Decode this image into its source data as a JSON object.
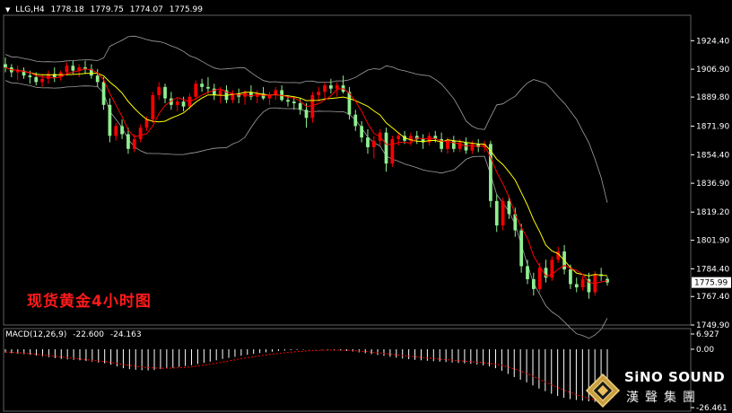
{
  "header": {
    "symbol": "LLG,H4",
    "open": "1778.18",
    "high": "1779.75",
    "low": "1774.07",
    "close": "1775.99"
  },
  "overlay_title": "现货黄金4小时图",
  "macd_header": {
    "label": "MACD(12,26,9)",
    "macd": "-22.600",
    "signal": "-24.163"
  },
  "logo": {
    "brand_en": "SiNO SOUND",
    "brand_cn": "漢聲集團"
  },
  "colors": {
    "background": "#000000",
    "bull_candle": "#90ee90",
    "bear_candle": "#ff0000",
    "ma_fast": "#ff0000",
    "ma_slow": "#ffff00",
    "bollinger": "#a0a0a0",
    "macd_hist": "#ffffff",
    "macd_signal": "#ff0000",
    "axis_text": "#ffffff"
  },
  "chart_data": [
    {
      "type": "candlestick",
      "title": "",
      "ylim": [
        1749.9,
        1940
      ],
      "y_ticks": [
        "1924.40",
        "1906.90",
        "1889.80",
        "1871.90",
        "1854.40",
        "1836.90",
        "1819.20",
        "1801.90",
        "1784.40",
        "1767.40",
        "1749.90"
      ],
      "current_price": "1775.99",
      "series": [
        {
          "type": "candlestick",
          "values": [
            [
              1910,
              1914,
              1905,
              1908
            ],
            [
              1908,
              1910,
              1902,
              1905
            ],
            [
              1905,
              1909,
              1900,
              1906
            ],
            [
              1906,
              1908,
              1901,
              1903
            ],
            [
              1903,
              1906,
              1898,
              1902
            ],
            [
              1902,
              1905,
              1897,
              1899
            ],
            [
              1899,
              1904,
              1896,
              1901
            ],
            [
              1901,
              1906,
              1898,
              1904
            ],
            [
              1904,
              1908,
              1899,
              1902
            ],
            [
              1902,
              1906,
              1900,
              1905
            ],
            [
              1905,
              1911,
              1903,
              1909
            ],
            [
              1909,
              1912,
              1904,
              1906
            ],
            [
              1906,
              1910,
              1902,
              1908
            ],
            [
              1908,
              1912,
              1904,
              1907
            ],
            [
              1907,
              1910,
              1901,
              1903
            ],
            [
              1903,
              1907,
              1896,
              1899
            ],
            [
              1899,
              1902,
              1882,
              1885
            ],
            [
              1885,
              1889,
              1862,
              1866
            ],
            [
              1866,
              1874,
              1863,
              1872
            ],
            [
              1872,
              1876,
              1864,
              1867
            ],
            [
              1867,
              1871,
              1855,
              1858
            ],
            [
              1858,
              1867,
              1856,
              1864
            ],
            [
              1864,
              1873,
              1862,
              1871
            ],
            [
              1871,
              1878,
              1869,
              1876
            ],
            [
              1876,
              1893,
              1874,
              1891
            ],
            [
              1891,
              1899,
              1888,
              1896
            ],
            [
              1896,
              1898,
              1886,
              1889
            ],
            [
              1889,
              1893,
              1882,
              1885
            ],
            [
              1885,
              1889,
              1881,
              1887
            ],
            [
              1887,
              1890,
              1881,
              1884
            ],
            [
              1884,
              1892,
              1882,
              1890
            ],
            [
              1890,
              1900,
              1888,
              1898
            ],
            [
              1898,
              1901,
              1893,
              1896
            ],
            [
              1896,
              1902,
              1892,
              1895
            ],
            [
              1895,
              1898,
              1888,
              1891
            ],
            [
              1891,
              1896,
              1886,
              1894
            ],
            [
              1894,
              1897,
              1886,
              1888
            ],
            [
              1888,
              1894,
              1886,
              1892
            ],
            [
              1892,
              1895,
              1886,
              1890
            ],
            [
              1890,
              1894,
              1885,
              1893
            ],
            [
              1893,
              1897,
              1888,
              1890
            ],
            [
              1890,
              1894,
              1886,
              1892
            ],
            [
              1892,
              1896,
              1888,
              1889
            ],
            [
              1889,
              1893,
              1885,
              1891
            ],
            [
              1891,
              1896,
              1888,
              1894
            ],
            [
              1894,
              1897,
              1887,
              1888
            ],
            [
              1888,
              1891,
              1884,
              1887
            ],
            [
              1887,
              1890,
              1882,
              1886
            ],
            [
              1886,
              1889,
              1879,
              1882
            ],
            [
              1882,
              1886,
              1871,
              1877
            ],
            [
              1877,
              1893,
              1874,
              1891
            ],
            [
              1891,
              1896,
              1887,
              1893
            ],
            [
              1893,
              1899,
              1889,
              1897
            ],
            [
              1897,
              1901,
              1892,
              1895
            ],
            [
              1895,
              1899,
              1890,
              1897
            ],
            [
              1897,
              1903,
              1892,
              1893
            ],
            [
              1893,
              1896,
              1876,
              1879
            ],
            [
              1879,
              1882,
              1869,
              1872
            ],
            [
              1872,
              1875,
              1862,
              1865
            ],
            [
              1865,
              1870,
              1855,
              1859
            ],
            [
              1859,
              1866,
              1852,
              1863
            ],
            [
              1863,
              1870,
              1860,
              1868
            ],
            [
              1868,
              1871,
              1844,
              1849
            ],
            [
              1849,
              1866,
              1847,
              1864
            ],
            [
              1864,
              1868,
              1860,
              1866
            ],
            [
              1866,
              1869,
              1861,
              1863
            ],
            [
              1863,
              1868,
              1860,
              1866
            ],
            [
              1866,
              1869,
              1861,
              1864
            ],
            [
              1864,
              1867,
              1858,
              1862
            ],
            [
              1862,
              1868,
              1860,
              1866
            ],
            [
              1866,
              1869,
              1862,
              1864
            ],
            [
              1864,
              1868,
              1856,
              1858
            ],
            [
              1858,
              1865,
              1855,
              1863
            ],
            [
              1863,
              1866,
              1856,
              1858
            ],
            [
              1858,
              1864,
              1856,
              1862
            ],
            [
              1862,
              1865,
              1855,
              1857
            ],
            [
              1857,
              1863,
              1855,
              1861
            ],
            [
              1861,
              1864,
              1856,
              1859
            ],
            [
              1859,
              1863,
              1856,
              1861
            ],
            [
              1861,
              1863,
              1822,
              1826
            ],
            [
              1826,
              1830,
              1807,
              1811
            ],
            [
              1811,
              1828,
              1808,
              1826
            ],
            [
              1826,
              1829,
              1815,
              1818
            ],
            [
              1818,
              1822,
              1804,
              1808
            ],
            [
              1808,
              1812,
              1782,
              1786
            ],
            [
              1786,
              1790,
              1775,
              1778
            ],
            [
              1778,
              1782,
              1768,
              1772
            ],
            [
              1772,
              1788,
              1770,
              1785
            ],
            [
              1785,
              1790,
              1776,
              1779
            ],
            [
              1779,
              1792,
              1777,
              1790
            ],
            [
              1790,
              1798,
              1788,
              1795
            ],
            [
              1795,
              1799,
              1781,
              1784
            ],
            [
              1784,
              1787,
              1772,
              1775
            ],
            [
              1775,
              1779,
              1770,
              1773
            ],
            [
              1773,
              1780,
              1771,
              1778
            ],
            [
              1778,
              1782,
              1766,
              1770
            ],
            [
              1770,
              1783,
              1768,
              1781
            ],
            [
              1781,
              1785,
              1777,
              1780
            ],
            [
              1778.18,
              1779.75,
              1774.07,
              1775.99
            ]
          ]
        },
        {
          "name": "",
          "type": "line",
          "role": "ma_fast"
        },
        {
          "name": "",
          "type": "line",
          "role": "ma_slow"
        },
        {
          "name": "",
          "type": "line",
          "role": "bollinger"
        }
      ]
    },
    {
      "type": "bar",
      "title": "MACD(12,26,9)",
      "ylim": [
        -26.461,
        6.927
      ],
      "y_ticks": [
        "6.927",
        "0.00",
        "-26.461"
      ],
      "values": [
        -1.5,
        -1.8,
        -2.0,
        -2.3,
        -2.5,
        -2.8,
        -3.2,
        -3.6,
        -4.0,
        -4.4,
        -4.6,
        -4.8,
        -5.0,
        -5.3,
        -5.6,
        -6.0,
        -6.4,
        -7.0,
        -7.8,
        -8.6,
        -9.0,
        -9.3,
        -9.5,
        -9.6,
        -9.4,
        -9.0,
        -8.7,
        -8.4,
        -8.0,
        -7.6,
        -7.2,
        -6.7,
        -6.2,
        -5.6,
        -5.0,
        -4.4,
        -3.9,
        -3.4,
        -2.9,
        -2.5,
        -2.1,
        -1.7,
        -1.4,
        -1.1,
        -0.8,
        -0.6,
        -0.4,
        -0.3,
        -0.2,
        -0.1,
        -0.1,
        -0.2,
        -0.2,
        -0.3,
        -0.5,
        -0.7,
        -1.0,
        -1.4,
        -1.8,
        -2.2,
        -2.6,
        -3.0,
        -3.4,
        -3.8,
        -4.2,
        -4.5,
        -4.8,
        -5.0,
        -5.2,
        -5.4,
        -5.6,
        -5.8,
        -6.0,
        -6.2,
        -6.4,
        -6.6,
        -6.9,
        -7.3,
        -7.8,
        -8.6,
        -9.8,
        -11.2,
        -12.6,
        -13.8,
        -15.0,
        -16.4,
        -17.8,
        -19.0,
        -20.2,
        -21.2,
        -22.0,
        -22.6,
        -23.0,
        -23.3,
        -23.6,
        -23.9,
        -24.1,
        -22.6
      ],
      "signal": [
        -1.2,
        -1.4,
        -1.6,
        -1.8,
        -2.0,
        -2.3,
        -2.6,
        -2.9,
        -3.2,
        -3.5,
        -3.8,
        -4.1,
        -4.4,
        -4.7,
        -5.0,
        -5.3,
        -5.6,
        -6.0,
        -6.4,
        -6.9,
        -7.3,
        -7.7,
        -8.0,
        -8.3,
        -8.5,
        -8.6,
        -8.6,
        -8.5,
        -8.4,
        -8.2,
        -7.9,
        -7.6,
        -7.2,
        -6.8,
        -6.3,
        -5.8,
        -5.3,
        -4.8,
        -4.3,
        -3.8,
        -3.4,
        -3.0,
        -2.6,
        -2.2,
        -1.9,
        -1.6,
        -1.3,
        -1.1,
        -0.9,
        -0.7,
        -0.6,
        -0.5,
        -0.4,
        -0.4,
        -0.4,
        -0.5,
        -0.6,
        -0.8,
        -1.0,
        -1.3,
        -1.6,
        -1.9,
        -2.2,
        -2.5,
        -2.8,
        -3.1,
        -3.4,
        -3.7,
        -4.0,
        -4.2,
        -4.5,
        -4.7,
        -4.9,
        -5.2,
        -5.4,
        -5.6,
        -5.9,
        -6.1,
        -6.4,
        -6.8,
        -7.3,
        -8.0,
        -8.9,
        -9.9,
        -11.0,
        -12.2,
        -13.5,
        -14.8,
        -16.1,
        -17.3,
        -18.5,
        -19.6,
        -20.6,
        -21.5,
        -22.3,
        -23.0,
        -23.6,
        -24.163
      ]
    }
  ]
}
